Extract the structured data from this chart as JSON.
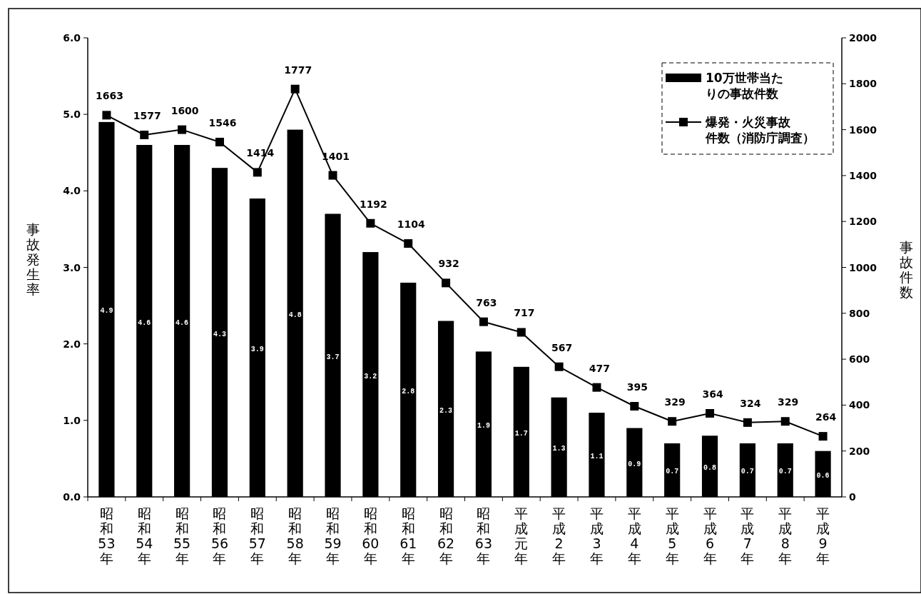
{
  "chart_data": {
    "type": "bar",
    "categories": [
      "昭和53年",
      "昭和54年",
      "昭和55年",
      "昭和56年",
      "昭和57年",
      "昭和58年",
      "昭和59年",
      "昭和60年",
      "昭和61年",
      "昭和62年",
      "昭和63年",
      "平成元年",
      "平成2年",
      "平成3年",
      "平成4年",
      "平成5年",
      "平成6年",
      "平成7年",
      "平成8年",
      "平成9年"
    ],
    "series": [
      {
        "name": "10万世帯当たりの事故件数",
        "color": "#000000",
        "values": [
          4.9,
          4.6,
          4.6,
          4.3,
          3.9,
          4.8,
          3.7,
          3.2,
          2.8,
          2.3,
          1.9,
          1.7,
          1.3,
          1.1,
          0.9,
          0.7,
          0.8,
          0.7,
          0.7,
          0.6
        ]
      },
      {
        "name": "爆発・火災事故件数（消防庁調査）",
        "type": "line",
        "axis": "y2",
        "color": "#000000",
        "values": [
          1663,
          1577,
          1600,
          1546,
          1414,
          1777,
          1401,
          1192,
          1104,
          932,
          763,
          717,
          567,
          477,
          395,
          329,
          364,
          324,
          329,
          264
        ]
      }
    ],
    "ylabel": "事故発生率",
    "y2label": "事故件数",
    "ylim": [
      0,
      6
    ],
    "yticks": [
      {
        "value": 0,
        "label": "0.0"
      },
      {
        "value": 1,
        "label": "1.0"
      },
      {
        "value": 2,
        "label": "2.0"
      },
      {
        "value": 3,
        "label": "3.0"
      },
      {
        "value": 4,
        "label": "4.0"
      },
      {
        "value": 5,
        "label": "5.0"
      },
      {
        "value": 6,
        "label": "6.0"
      }
    ],
    "y2lim": [
      0,
      2000
    ],
    "y2ticks": [
      0,
      200,
      400,
      600,
      800,
      1000,
      1200,
      1400,
      1600,
      1800,
      2000
    ],
    "data_labels": true,
    "legend": "top right",
    "marker": "square",
    "line_style": "solid"
  }
}
